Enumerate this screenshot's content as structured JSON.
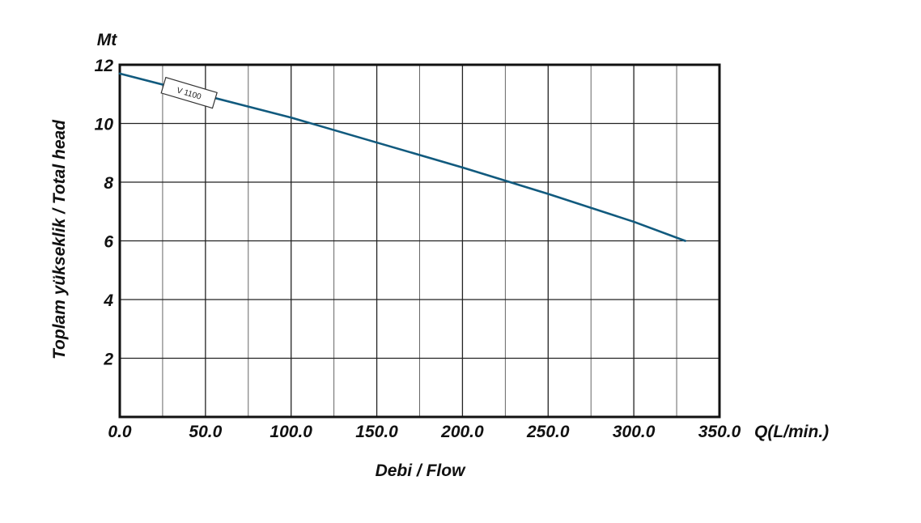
{
  "chart_data": {
    "type": "line",
    "xlabel": "Debi / Flow",
    "ylabel": "Toplam yükseklik / Total head",
    "x_unit": "Q(L/min.)",
    "y_unit": "Mt",
    "xlim": [
      0,
      350
    ],
    "ylim": [
      0,
      12
    ],
    "x_ticks": [
      "0.0",
      "50.0",
      "100.0",
      "150.0",
      "200.0",
      "250.0",
      "300.0",
      "350.0"
    ],
    "y_ticks": [
      "2",
      "4",
      "6",
      "8",
      "10",
      "12"
    ],
    "x_ticks_values": [
      0,
      50,
      100,
      150,
      200,
      250,
      300,
      350
    ],
    "y_ticks_values": [
      2,
      4,
      6,
      8,
      10,
      12
    ],
    "x_grid_step": 25,
    "y_grid_step": 2,
    "grid": true,
    "series": [
      {
        "name": "V 1100",
        "color": "#115a7e",
        "x": [
          0,
          50,
          100,
          150,
          200,
          250,
          300,
          330
        ],
        "y": [
          11.7,
          10.95,
          10.2,
          9.35,
          8.5,
          7.6,
          6.65,
          6.0
        ]
      }
    ]
  }
}
